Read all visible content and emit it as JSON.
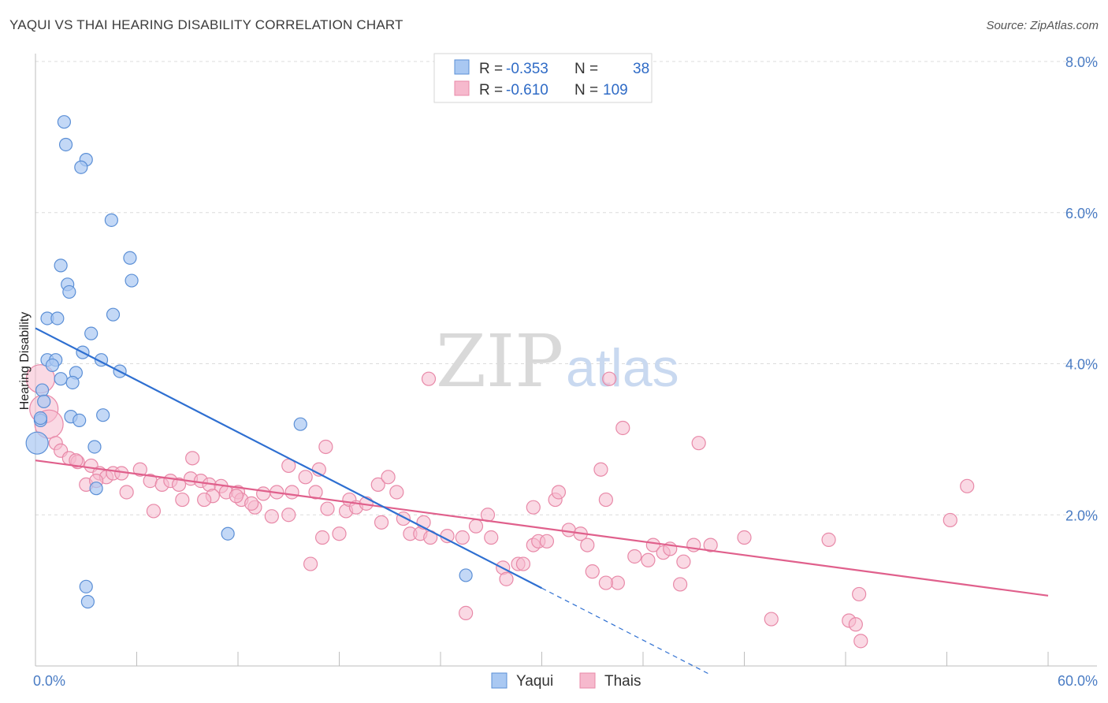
{
  "title": "YAQUI VS THAI HEARING DISABILITY CORRELATION CHART",
  "source": "Source: ZipAtlas.com",
  "watermark": {
    "zip": "ZIP",
    "atlas": "atlas"
  },
  "colors": {
    "yaqui_fill": "#a9c8f2",
    "yaqui_stroke": "#5b8fd6",
    "yaqui_line": "#2e6fd1",
    "thai_fill": "#f6b9cd",
    "thai_stroke": "#e889a8",
    "thai_line": "#e0608c",
    "grid": "#dcdcdc",
    "tick_text": "#4a7cc4"
  },
  "legend": {
    "rows": [
      {
        "r_label": "R = ",
        "r_value": "-0.353",
        "n_label": "N = ",
        "n_value": "38"
      },
      {
        "r_label": "R = ",
        "r_value": "-0.610",
        "n_label": "N = ",
        "n_value": "109"
      }
    ]
  },
  "chart_data": {
    "type": "scatter",
    "ylabel": "Hearing Disability",
    "xlim": [
      0,
      60
    ],
    "ylim": [
      0,
      8
    ],
    "x_tick_labels": [
      "0.0%",
      "60.0%"
    ],
    "y_ticks": [
      {
        "value": 2,
        "label": "2.0%"
      },
      {
        "value": 4,
        "label": "4.0%"
      },
      {
        "value": 6,
        "label": "6.0%"
      },
      {
        "value": 8,
        "label": "8.0%"
      }
    ],
    "grid": true,
    "series": [
      {
        "name": "Yaqui",
        "r": -0.353,
        "n": 38,
        "trend": {
          "x0": 0,
          "y0": 4.47,
          "x1": 30,
          "y1": 1.03,
          "dashed_to_x": 40
        },
        "points": [
          [
            1.7,
            7.2
          ],
          [
            1.8,
            6.9
          ],
          [
            3.0,
            6.7
          ],
          [
            2.7,
            6.6
          ],
          [
            4.5,
            5.9
          ],
          [
            5.6,
            5.4
          ],
          [
            1.5,
            5.3
          ],
          [
            5.7,
            5.1
          ],
          [
            1.9,
            5.05
          ],
          [
            2.0,
            4.95
          ],
          [
            4.6,
            4.65
          ],
          [
            0.7,
            4.6
          ],
          [
            1.3,
            4.6
          ],
          [
            3.3,
            4.4
          ],
          [
            2.8,
            4.15
          ],
          [
            0.7,
            4.05
          ],
          [
            1.2,
            4.05
          ],
          [
            3.9,
            4.05
          ],
          [
            1.0,
            3.98
          ],
          [
            5.0,
            3.9
          ],
          [
            2.4,
            3.88
          ],
          [
            1.5,
            3.8
          ],
          [
            2.2,
            3.75
          ],
          [
            0.4,
            3.65
          ],
          [
            0.5,
            3.5
          ],
          [
            4.0,
            3.32
          ],
          [
            2.1,
            3.3
          ],
          [
            0.3,
            3.25
          ],
          [
            2.6,
            3.25
          ],
          [
            15.7,
            3.2
          ],
          [
            3.5,
            2.9
          ],
          [
            0.1,
            2.95
          ],
          [
            3.6,
            2.35
          ],
          [
            11.4,
            1.75
          ],
          [
            25.5,
            1.2
          ],
          [
            3.0,
            1.05
          ],
          [
            3.1,
            0.85
          ],
          [
            0.3,
            3.28
          ]
        ]
      },
      {
        "name": "Thais",
        "r": -0.61,
        "n": 109,
        "trend": {
          "x0": 0,
          "y0": 2.72,
          "x1": 60,
          "y1": 0.93
        },
        "points": [
          [
            0.3,
            3.8
          ],
          [
            0.5,
            3.4
          ],
          [
            0.8,
            3.2
          ],
          [
            1.2,
            2.95
          ],
          [
            1.5,
            2.85
          ],
          [
            2.0,
            2.75
          ],
          [
            2.5,
            2.7
          ],
          [
            3.3,
            2.65
          ],
          [
            2.4,
            2.72
          ],
          [
            3.8,
            2.55
          ],
          [
            4.2,
            2.5
          ],
          [
            4.6,
            2.55
          ],
          [
            5.1,
            2.55
          ],
          [
            6.2,
            2.6
          ],
          [
            3.0,
            2.4
          ],
          [
            3.6,
            2.45
          ],
          [
            5.4,
            2.3
          ],
          [
            6.8,
            2.45
          ],
          [
            7.5,
            2.4
          ],
          [
            8.0,
            2.45
          ],
          [
            8.5,
            2.4
          ],
          [
            9.2,
            2.48
          ],
          [
            9.8,
            2.45
          ],
          [
            9.3,
            2.75
          ],
          [
            10.3,
            2.4
          ],
          [
            11.0,
            2.38
          ],
          [
            11.3,
            2.3
          ],
          [
            12.0,
            2.3
          ],
          [
            12.2,
            2.2
          ],
          [
            13.0,
            2.1
          ],
          [
            13.5,
            2.28
          ],
          [
            14.3,
            2.3
          ],
          [
            7.0,
            2.05
          ],
          [
            8.7,
            2.2
          ],
          [
            10.5,
            2.25
          ],
          [
            12.8,
            2.15
          ],
          [
            14.0,
            1.98
          ],
          [
            15.2,
            2.3
          ],
          [
            16.0,
            2.5
          ],
          [
            16.6,
            2.3
          ],
          [
            15.0,
            2.65
          ],
          [
            16.8,
            2.6
          ],
          [
            17.3,
            2.08
          ],
          [
            18.4,
            2.05
          ],
          [
            18.6,
            2.2
          ],
          [
            19.0,
            2.1
          ],
          [
            19.6,
            2.15
          ],
          [
            20.3,
            2.4
          ],
          [
            20.9,
            2.5
          ],
          [
            21.4,
            2.3
          ],
          [
            20.5,
            1.9
          ],
          [
            21.8,
            1.95
          ],
          [
            22.2,
            1.75
          ],
          [
            22.8,
            1.75
          ],
          [
            23.4,
            1.7
          ],
          [
            23.0,
            1.9
          ],
          [
            24.4,
            1.72
          ],
          [
            25.3,
            1.7
          ],
          [
            26.8,
            2.0
          ],
          [
            27.0,
            1.7
          ],
          [
            27.7,
            1.3
          ],
          [
            27.9,
            1.15
          ],
          [
            28.6,
            1.35
          ],
          [
            28.9,
            1.35
          ],
          [
            29.5,
            1.6
          ],
          [
            29.8,
            1.65
          ],
          [
            30.8,
            2.2
          ],
          [
            31.0,
            2.3
          ],
          [
            30.3,
            1.65
          ],
          [
            31.6,
            1.8
          ],
          [
            32.3,
            1.75
          ],
          [
            32.7,
            1.6
          ],
          [
            33.0,
            1.25
          ],
          [
            33.5,
            2.6
          ],
          [
            33.8,
            2.2
          ],
          [
            34.0,
            3.8
          ],
          [
            34.8,
            3.15
          ],
          [
            34.5,
            1.1
          ],
          [
            36.3,
            1.4
          ],
          [
            36.6,
            1.6
          ],
          [
            37.2,
            1.5
          ],
          [
            37.6,
            1.55
          ],
          [
            38.4,
            1.38
          ],
          [
            39.0,
            1.6
          ],
          [
            38.2,
            1.08
          ],
          [
            39.3,
            2.95
          ],
          [
            17.2,
            2.9
          ],
          [
            23.3,
            3.8
          ],
          [
            25.5,
            0.7
          ],
          [
            26.1,
            1.85
          ],
          [
            29.5,
            2.1
          ],
          [
            17.0,
            1.7
          ],
          [
            18.0,
            1.75
          ],
          [
            16.3,
            1.35
          ],
          [
            15.0,
            2.0
          ],
          [
            11.9,
            2.25
          ],
          [
            10.0,
            2.2
          ],
          [
            40.0,
            1.6
          ],
          [
            42.0,
            1.7
          ],
          [
            43.6,
            0.62
          ],
          [
            47.0,
            1.67
          ],
          [
            48.2,
            0.6
          ],
          [
            48.6,
            0.55
          ],
          [
            48.8,
            0.95
          ],
          [
            48.9,
            0.33
          ],
          [
            54.2,
            1.93
          ],
          [
            55.2,
            2.38
          ],
          [
            35.5,
            1.45
          ],
          [
            33.8,
            1.1
          ]
        ]
      }
    ]
  }
}
